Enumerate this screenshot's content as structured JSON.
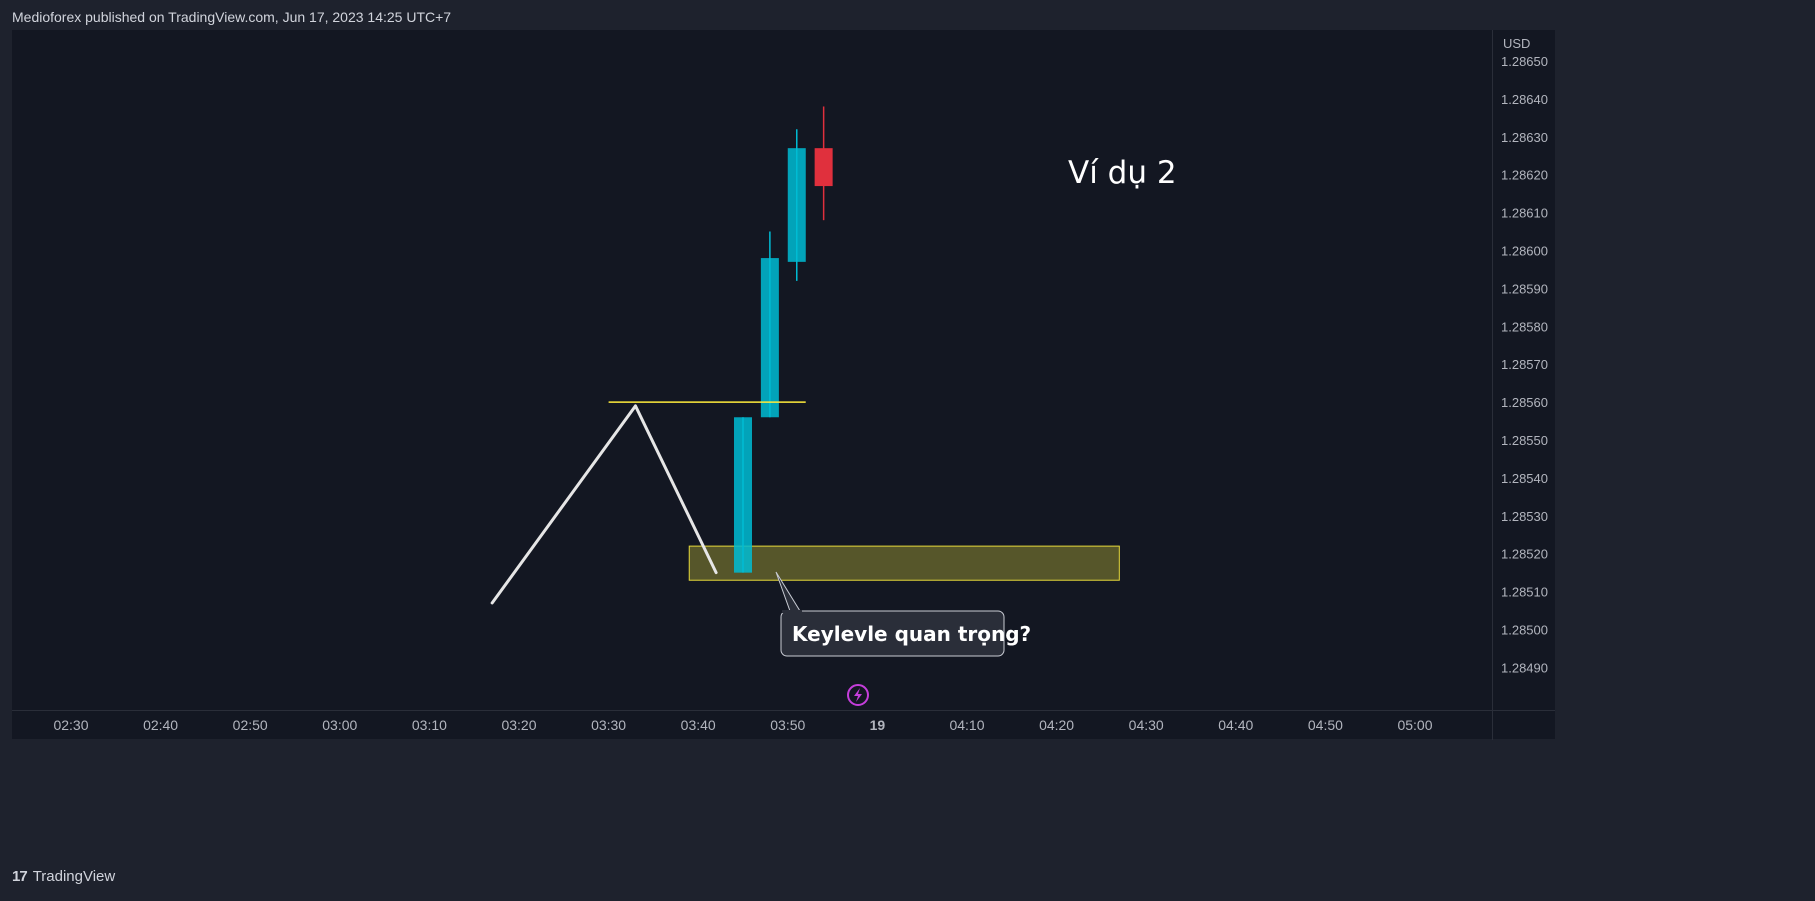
{
  "header": {
    "published_text": "Medioforex published on TradingView.com, Jun 17, 2023 14:25 UTC+7"
  },
  "footer": {
    "logo_text": "TradingView"
  },
  "colors": {
    "background": "#131722",
    "frame": "#1e222d",
    "bull": "#00bcd4",
    "bear": "#e0303d",
    "level_line": "#ffeb3b",
    "zone_fill": "#5a5a2b",
    "zone_border": "#e6d93a",
    "path_line": "#e6e6e6",
    "callout_bg": "#2a2e39",
    "lightning": "#c53edb"
  },
  "chart_data": {
    "type": "candlestick",
    "currency": "USD",
    "y_ticks": [
      "1.28650",
      "1.28640",
      "1.28630",
      "1.28620",
      "1.28610",
      "1.28600",
      "1.28590",
      "1.28580",
      "1.28570",
      "1.28560",
      "1.28550",
      "1.28540",
      "1.28530",
      "1.28520",
      "1.28510",
      "1.28500",
      "1.28490"
    ],
    "x_ticks": [
      "02:30",
      "02:40",
      "02:50",
      "03:00",
      "03:10",
      "03:20",
      "03:30",
      "03:40",
      "03:50",
      "19",
      "04:10",
      "04:20",
      "04:30",
      "04:40",
      "04:50",
      "05:00"
    ],
    "x_ticks_bold": [
      "19"
    ],
    "candles": [
      {
        "time": "03:45",
        "open": 1.28515,
        "high": 1.28556,
        "low": 1.28515,
        "close": 1.28556
      },
      {
        "time": "03:48",
        "open": 1.28556,
        "high": 1.28605,
        "low": 1.28556,
        "close": 1.28598
      },
      {
        "time": "03:51",
        "open": 1.28597,
        "high": 1.28632,
        "low": 1.28592,
        "close": 1.28627
      },
      {
        "time": "03:54",
        "open": 1.28627,
        "high": 1.28638,
        "low": 1.28608,
        "close": 1.28617
      }
    ],
    "drawings": {
      "path": [
        {
          "time": "03:17",
          "price": 1.28507
        },
        {
          "time": "03:33",
          "price": 1.28559
        },
        {
          "time": "03:42",
          "price": 1.28515
        }
      ],
      "level": {
        "price": 1.2856,
        "from": "03:30",
        "to": "03:52"
      },
      "zone": {
        "price_top": 1.28522,
        "price_bottom": 1.28513,
        "from": "03:39",
        "to": "04:27"
      },
      "callout_text": "Keylevle quan trọng?",
      "title_text": "Ví dụ 2"
    }
  }
}
